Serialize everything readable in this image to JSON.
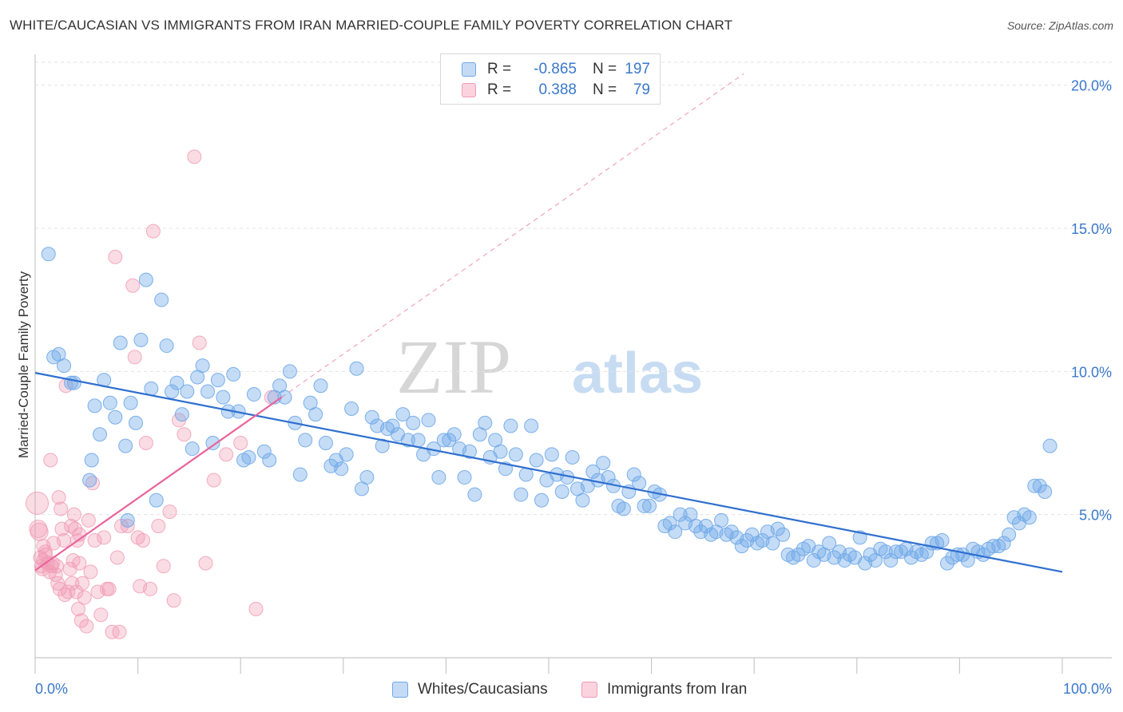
{
  "header": {
    "title": "WHITE/CAUCASIAN VS IMMIGRANTS FROM IRAN MARRIED-COUPLE FAMILY POVERTY CORRELATION CHART",
    "source": "Source: ZipAtlas.com"
  },
  "watermark": {
    "zip": "ZIP",
    "atlas": "atlas"
  },
  "legend": {
    "rows": [
      {
        "r_label": "R =",
        "r_value": "-0.865",
        "n_label": "N =",
        "n_value": "197",
        "color": "#6fa8e8"
      },
      {
        "r_label": "R =",
        "r_value": "0.388",
        "n_label": "N =",
        "n_value": "79",
        "color": "#f09ab4"
      }
    ]
  },
  "bottom_legend": {
    "items": [
      {
        "label": "Whites/Caucasians",
        "color": "#6fa8e8"
      },
      {
        "label": "Immigrants from Iran",
        "color": "#f09ab4"
      }
    ]
  },
  "chart_data": {
    "type": "scatter",
    "title": "WHITE/CAUCASIAN VS IMMIGRANTS FROM IRAN MARRIED-COUPLE FAMILY POVERTY CORRELATION CHART",
    "xlabel": "",
    "ylabel": "Married-Couple Family Poverty",
    "x_tick_labels": [
      "0.0%",
      "100.0%"
    ],
    "y_tick_labels": [
      "5.0%",
      "10.0%",
      "15.0%",
      "20.0%"
    ],
    "xlim": [
      0,
      100
    ],
    "ylim": [
      0,
      20.8
    ],
    "grid": true,
    "series": [
      {
        "name": "Whites/Caucasians",
        "color": "#6fa8e8",
        "line_color": "#2f6fcf",
        "trend": {
          "x": [
            0,
            100
          ],
          "y": [
            9.95,
            3.0
          ]
        },
        "points": [
          [
            1.3,
            14.1
          ],
          [
            1.8,
            10.5
          ],
          [
            2.3,
            10.6
          ],
          [
            2.8,
            10.2
          ],
          [
            3.5,
            9.6
          ],
          [
            3.8,
            9.6
          ],
          [
            5.3,
            6.2
          ],
          [
            5.5,
            6.9
          ],
          [
            5.8,
            8.8
          ],
          [
            6.3,
            7.8
          ],
          [
            6.7,
            9.7
          ],
          [
            7.3,
            8.9
          ],
          [
            7.8,
            8.4
          ],
          [
            8.3,
            11.0
          ],
          [
            8.8,
            7.4
          ],
          [
            9.3,
            8.9
          ],
          [
            9.8,
            8.2
          ],
          [
            10.3,
            11.1
          ],
          [
            10.8,
            13.2
          ],
          [
            11.3,
            9.4
          ],
          [
            11.8,
            5.5
          ],
          [
            12.3,
            12.5
          ],
          [
            12.8,
            10.9
          ],
          [
            13.3,
            9.3
          ],
          [
            13.8,
            9.6
          ],
          [
            14.3,
            8.5
          ],
          [
            14.8,
            9.3
          ],
          [
            15.3,
            7.3
          ],
          [
            15.8,
            9.8
          ],
          [
            16.3,
            10.2
          ],
          [
            16.8,
            9.3
          ],
          [
            17.3,
            7.5
          ],
          [
            17.8,
            9.7
          ],
          [
            18.3,
            9.1
          ],
          [
            18.8,
            8.6
          ],
          [
            19.3,
            9.9
          ],
          [
            19.8,
            8.6
          ],
          [
            20.3,
            6.9
          ],
          [
            20.8,
            7.0
          ],
          [
            21.3,
            9.2
          ],
          [
            22.3,
            7.2
          ],
          [
            22.8,
            6.9
          ],
          [
            23.3,
            9.1
          ],
          [
            23.8,
            9.5
          ],
          [
            24.3,
            9.1
          ],
          [
            24.8,
            10.0
          ],
          [
            25.3,
            8.2
          ],
          [
            25.8,
            6.4
          ],
          [
            26.3,
            7.6
          ],
          [
            26.8,
            8.9
          ],
          [
            27.3,
            8.5
          ],
          [
            27.8,
            9.5
          ],
          [
            28.3,
            7.5
          ],
          [
            28.8,
            6.7
          ],
          [
            29.3,
            6.9
          ],
          [
            29.8,
            6.6
          ],
          [
            30.3,
            7.1
          ],
          [
            30.8,
            8.7
          ],
          [
            31.3,
            10.1
          ],
          [
            31.8,
            5.9
          ],
          [
            32.3,
            6.3
          ],
          [
            32.8,
            8.4
          ],
          [
            33.3,
            8.1
          ],
          [
            33.8,
            7.4
          ],
          [
            34.3,
            8.0
          ],
          [
            34.8,
            8.1
          ],
          [
            35.3,
            7.8
          ],
          [
            35.8,
            8.5
          ],
          [
            36.3,
            7.6
          ],
          [
            36.8,
            8.2
          ],
          [
            37.3,
            7.6
          ],
          [
            37.8,
            7.1
          ],
          [
            38.3,
            8.3
          ],
          [
            38.8,
            7.3
          ],
          [
            39.3,
            6.3
          ],
          [
            39.8,
            7.6
          ],
          [
            40.3,
            7.6
          ],
          [
            40.8,
            7.8
          ],
          [
            41.3,
            7.3
          ],
          [
            41.8,
            6.3
          ],
          [
            42.3,
            7.2
          ],
          [
            42.8,
            5.7
          ],
          [
            43.3,
            7.8
          ],
          [
            43.8,
            8.2
          ],
          [
            44.3,
            7.0
          ],
          [
            44.8,
            7.6
          ],
          [
            45.3,
            7.2
          ],
          [
            45.8,
            6.6
          ],
          [
            46.3,
            8.1
          ],
          [
            46.8,
            7.1
          ],
          [
            47.3,
            5.7
          ],
          [
            47.8,
            6.4
          ],
          [
            48.3,
            8.1
          ],
          [
            48.8,
            6.9
          ],
          [
            49.3,
            5.5
          ],
          [
            49.8,
            6.2
          ],
          [
            50.3,
            7.1
          ],
          [
            50.8,
            6.4
          ],
          [
            51.3,
            5.8
          ],
          [
            51.8,
            6.3
          ],
          [
            52.3,
            7.0
          ],
          [
            52.8,
            5.9
          ],
          [
            53.3,
            5.5
          ],
          [
            53.8,
            6.0
          ],
          [
            54.3,
            6.5
          ],
          [
            54.8,
            6.2
          ],
          [
            55.3,
            6.8
          ],
          [
            55.8,
            6.3
          ],
          [
            56.3,
            6.0
          ],
          [
            56.8,
            5.3
          ],
          [
            57.3,
            5.2
          ],
          [
            57.8,
            5.8
          ],
          [
            58.3,
            6.4
          ],
          [
            58.8,
            6.1
          ],
          [
            59.3,
            5.3
          ],
          [
            59.8,
            5.3
          ],
          [
            60.3,
            5.8
          ],
          [
            60.8,
            5.7
          ],
          [
            61.3,
            4.6
          ],
          [
            61.8,
            4.7
          ],
          [
            62.3,
            4.4
          ],
          [
            62.8,
            5.0
          ],
          [
            63.3,
            4.7
          ],
          [
            63.8,
            5.0
          ],
          [
            64.3,
            4.6
          ],
          [
            64.8,
            4.4
          ],
          [
            65.3,
            4.6
          ],
          [
            65.8,
            4.3
          ],
          [
            66.3,
            4.4
          ],
          [
            66.8,
            4.8
          ],
          [
            67.3,
            4.3
          ],
          [
            67.8,
            4.4
          ],
          [
            68.3,
            4.2
          ],
          [
            68.8,
            3.9
          ],
          [
            69.3,
            4.1
          ],
          [
            69.8,
            4.3
          ],
          [
            70.3,
            4.0
          ],
          [
            70.8,
            4.1
          ],
          [
            71.3,
            4.4
          ],
          [
            71.8,
            4.0
          ],
          [
            72.3,
            4.5
          ],
          [
            72.8,
            4.3
          ],
          [
            73.3,
            3.6
          ],
          [
            73.8,
            3.5
          ],
          [
            74.3,
            3.6
          ],
          [
            74.8,
            3.8
          ],
          [
            75.3,
            3.9
          ],
          [
            75.8,
            3.4
          ],
          [
            76.3,
            3.7
          ],
          [
            76.8,
            3.6
          ],
          [
            77.3,
            4.0
          ],
          [
            77.8,
            3.5
          ],
          [
            78.3,
            3.7
          ],
          [
            78.8,
            3.4
          ],
          [
            79.3,
            3.6
          ],
          [
            79.8,
            3.5
          ],
          [
            80.3,
            4.2
          ],
          [
            80.8,
            3.3
          ],
          [
            81.3,
            3.6
          ],
          [
            81.8,
            3.4
          ],
          [
            82.3,
            3.8
          ],
          [
            82.8,
            3.7
          ],
          [
            83.3,
            3.4
          ],
          [
            83.8,
            3.7
          ],
          [
            84.3,
            3.7
          ],
          [
            84.8,
            3.8
          ],
          [
            85.3,
            3.5
          ],
          [
            85.8,
            3.7
          ],
          [
            86.3,
            3.6
          ],
          [
            86.8,
            3.7
          ],
          [
            87.3,
            4.0
          ],
          [
            87.8,
            4.0
          ],
          [
            88.3,
            4.1
          ],
          [
            88.8,
            3.3
          ],
          [
            89.3,
            3.5
          ],
          [
            89.8,
            3.6
          ],
          [
            90.3,
            3.6
          ],
          [
            90.8,
            3.4
          ],
          [
            91.3,
            3.8
          ],
          [
            91.8,
            3.7
          ],
          [
            92.3,
            3.6
          ],
          [
            92.8,
            3.8
          ],
          [
            93.3,
            3.9
          ],
          [
            93.8,
            3.9
          ],
          [
            94.3,
            4.0
          ],
          [
            94.8,
            4.3
          ],
          [
            95.3,
            4.9
          ],
          [
            95.8,
            4.7
          ],
          [
            96.3,
            5.0
          ],
          [
            96.8,
            4.9
          ],
          [
            97.3,
            6.0
          ],
          [
            97.8,
            6.0
          ],
          [
            98.3,
            5.8
          ],
          [
            98.8,
            7.4
          ],
          [
            9.0,
            4.8
          ]
        ]
      },
      {
        "name": "Immigrants from Iran",
        "color": "#f09ab4",
        "line_color": "#e8649a",
        "trend": {
          "x": [
            0,
            24
          ],
          "y": [
            3.05,
            9.1
          ]
        },
        "trend_extension": {
          "x": [
            24,
            69
          ],
          "y": [
            9.1,
            20.4
          ]
        },
        "points": [
          [
            0.2,
            5.4
          ],
          [
            0.3,
            4.5
          ],
          [
            0.4,
            4.4
          ],
          [
            0.5,
            3.5
          ],
          [
            0.6,
            3.2
          ],
          [
            0.7,
            3.1
          ],
          [
            0.8,
            3.4
          ],
          [
            1.0,
            3.7
          ],
          [
            1.2,
            3.3
          ],
          [
            1.4,
            3.0
          ],
          [
            1.5,
            6.9
          ],
          [
            1.6,
            3.2
          ],
          [
            1.8,
            4.0
          ],
          [
            2.0,
            2.9
          ],
          [
            2.1,
            3.2
          ],
          [
            2.2,
            2.6
          ],
          [
            2.3,
            5.6
          ],
          [
            2.4,
            2.4
          ],
          [
            2.5,
            5.2
          ],
          [
            2.6,
            4.5
          ],
          [
            2.8,
            4.1
          ],
          [
            2.9,
            2.2
          ],
          [
            3.0,
            9.5
          ],
          [
            3.2,
            2.3
          ],
          [
            3.4,
            3.1
          ],
          [
            3.5,
            4.6
          ],
          [
            3.6,
            2.6
          ],
          [
            3.7,
            3.4
          ],
          [
            3.8,
            5.0
          ],
          [
            3.9,
            4.5
          ],
          [
            4.0,
            2.3
          ],
          [
            4.1,
            4.1
          ],
          [
            4.2,
            1.7
          ],
          [
            4.3,
            4.3
          ],
          [
            4.5,
            1.3
          ],
          [
            4.6,
            2.6
          ],
          [
            4.8,
            2.1
          ],
          [
            5.0,
            1.1
          ],
          [
            5.2,
            4.8
          ],
          [
            5.4,
            3.0
          ],
          [
            5.6,
            6.1
          ],
          [
            5.8,
            4.1
          ],
          [
            6.1,
            2.3
          ],
          [
            6.4,
            1.5
          ],
          [
            6.7,
            4.2
          ],
          [
            7.0,
            2.4
          ],
          [
            7.2,
            2.4
          ],
          [
            7.5,
            0.9
          ],
          [
            7.8,
            14.0
          ],
          [
            8.0,
            3.5
          ],
          [
            8.2,
            0.9
          ],
          [
            8.4,
            4.6
          ],
          [
            9.0,
            4.6
          ],
          [
            9.5,
            13.0
          ],
          [
            9.7,
            10.5
          ],
          [
            10.0,
            4.2
          ],
          [
            10.2,
            2.5
          ],
          [
            10.5,
            4.1
          ],
          [
            10.8,
            7.5
          ],
          [
            11.2,
            2.4
          ],
          [
            11.5,
            14.9
          ],
          [
            12.0,
            4.6
          ],
          [
            12.5,
            3.2
          ],
          [
            13.1,
            5.1
          ],
          [
            13.5,
            2.0
          ],
          [
            14.0,
            8.3
          ],
          [
            14.5,
            7.8
          ],
          [
            15.5,
            17.5
          ],
          [
            16.0,
            11.0
          ],
          [
            16.6,
            3.3
          ],
          [
            17.4,
            6.2
          ],
          [
            18.6,
            7.1
          ],
          [
            20.0,
            7.5
          ],
          [
            21.5,
            1.7
          ],
          [
            23.0,
            9.1
          ],
          [
            1.0,
            3.6
          ],
          [
            0.8,
            3.9
          ],
          [
            1.7,
            3.3
          ],
          [
            4.3,
            3.3
          ]
        ]
      }
    ]
  }
}
